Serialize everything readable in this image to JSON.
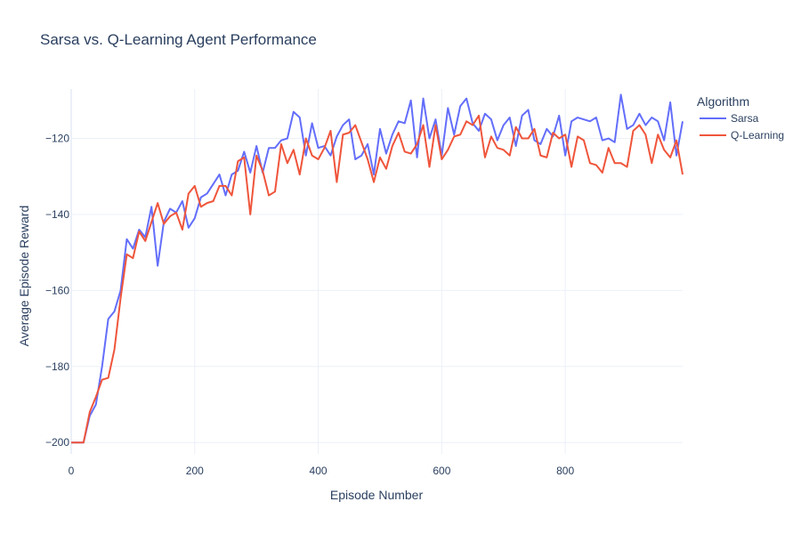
{
  "chart_data": {
    "type": "line",
    "title": "Sarsa vs. Q-Learning Agent Performance",
    "xlabel": "Episode Number",
    "ylabel": "Average Episode Reward",
    "xlim": [
      0,
      990
    ],
    "ylim": [
      -203,
      -107
    ],
    "x_ticks": [
      0,
      200,
      400,
      600,
      800
    ],
    "x_tick_labels": [
      "0",
      "200",
      "400",
      "600",
      "800"
    ],
    "y_ticks": [
      -200,
      -180,
      -160,
      -140,
      -120
    ],
    "y_tick_labels": [
      "−200",
      "−180",
      "−160",
      "−140",
      "−120"
    ],
    "grid": true,
    "legend": {
      "title": "Algorithm",
      "position": "top-right"
    },
    "x": [
      0,
      10,
      20,
      30,
      40,
      50,
      60,
      70,
      80,
      90,
      100,
      110,
      120,
      130,
      140,
      150,
      160,
      170,
      180,
      190,
      200,
      210,
      220,
      230,
      240,
      250,
      260,
      270,
      280,
      290,
      300,
      310,
      320,
      330,
      340,
      350,
      360,
      370,
      380,
      390,
      400,
      410,
      420,
      430,
      440,
      450,
      460,
      470,
      480,
      490,
      500,
      510,
      520,
      530,
      540,
      550,
      560,
      570,
      580,
      590,
      600,
      610,
      620,
      630,
      640,
      650,
      660,
      670,
      680,
      690,
      700,
      710,
      720,
      730,
      740,
      750,
      760,
      770,
      780,
      790,
      800,
      810,
      820,
      830,
      840,
      850,
      860,
      870,
      880,
      890,
      900,
      910,
      920,
      930,
      940,
      950,
      960,
      970,
      980,
      990
    ],
    "series": [
      {
        "name": "Sarsa",
        "color": "#636efa",
        "values": [
          -200,
          -200,
          -200,
          -193,
          -190,
          -180,
          -167.5,
          -165.5,
          -160,
          -146.5,
          -149,
          -144,
          -146,
          -138,
          -153.5,
          -142,
          -138.5,
          -139.5,
          -136.5,
          -143.5,
          -141,
          -135.5,
          -134.5,
          -132,
          -129.5,
          -135,
          -129.5,
          -128.5,
          -123.5,
          -129,
          -122,
          -129,
          -122.5,
          -122.5,
          -120.5,
          -120,
          -113,
          -114.5,
          -124.5,
          -116,
          -122.5,
          -122,
          -124.5,
          -119.5,
          -116.5,
          -115,
          -125.5,
          -124.5,
          -121.5,
          -129.5,
          -117.5,
          -124,
          -119,
          -115.5,
          -116,
          -110,
          -125,
          -109.5,
          -120,
          -115,
          -124.5,
          -112,
          -119,
          -111.5,
          -109.5,
          -116,
          -118,
          -113.5,
          -115,
          -120.5,
          -116.5,
          -114.5,
          -122,
          -114,
          -112.5,
          -120.5,
          -121.5,
          -117.5,
          -119.5,
          -114,
          -124.5,
          -115.5,
          -114.5,
          -115,
          -115.5,
          -114.5,
          -120.5,
          -120,
          -121,
          -108.5,
          -117.5,
          -116.5,
          -113.5,
          -116.5,
          -114.5,
          -115.5,
          -120.5,
          -110.5,
          -124.5,
          -115.5
        ]
      },
      {
        "name": "Q-Learning",
        "color": "#ef553b",
        "values": [
          -200,
          -200,
          -200,
          -192,
          -188,
          -183.5,
          -183,
          -175.5,
          -162,
          -150.5,
          -151.5,
          -144.5,
          -147,
          -142,
          -137,
          -142.5,
          -140.5,
          -139.5,
          -144,
          -134.5,
          -132.5,
          -138,
          -137,
          -136.5,
          -132.5,
          -132.5,
          -135,
          -126,
          -125,
          -140,
          -124.5,
          -128.5,
          -135,
          -134,
          -121.5,
          -126.5,
          -123,
          -129.5,
          -120,
          -124.5,
          -125.5,
          -122.5,
          -118,
          -131.5,
          -119,
          -118.5,
          -116.5,
          -121,
          -125.5,
          -131.5,
          -125,
          -128,
          -122,
          -118.5,
          -123.5,
          -124,
          -121.5,
          -116.5,
          -127.5,
          -116.5,
          -125.5,
          -123,
          -119.5,
          -119,
          -115.5,
          -116.5,
          -114,
          -125,
          -119.5,
          -122.5,
          -123,
          -124.5,
          -117,
          -120,
          -120,
          -117.5,
          -124.5,
          -125,
          -118.5,
          -120,
          -119,
          -127.5,
          -119.5,
          -120.5,
          -126.5,
          -127,
          -129,
          -122.5,
          -126.5,
          -126.5,
          -127.5,
          -118,
          -116.5,
          -119,
          -126.5,
          -119,
          -123,
          -125,
          -120.5,
          -129.5
        ]
      }
    ]
  }
}
